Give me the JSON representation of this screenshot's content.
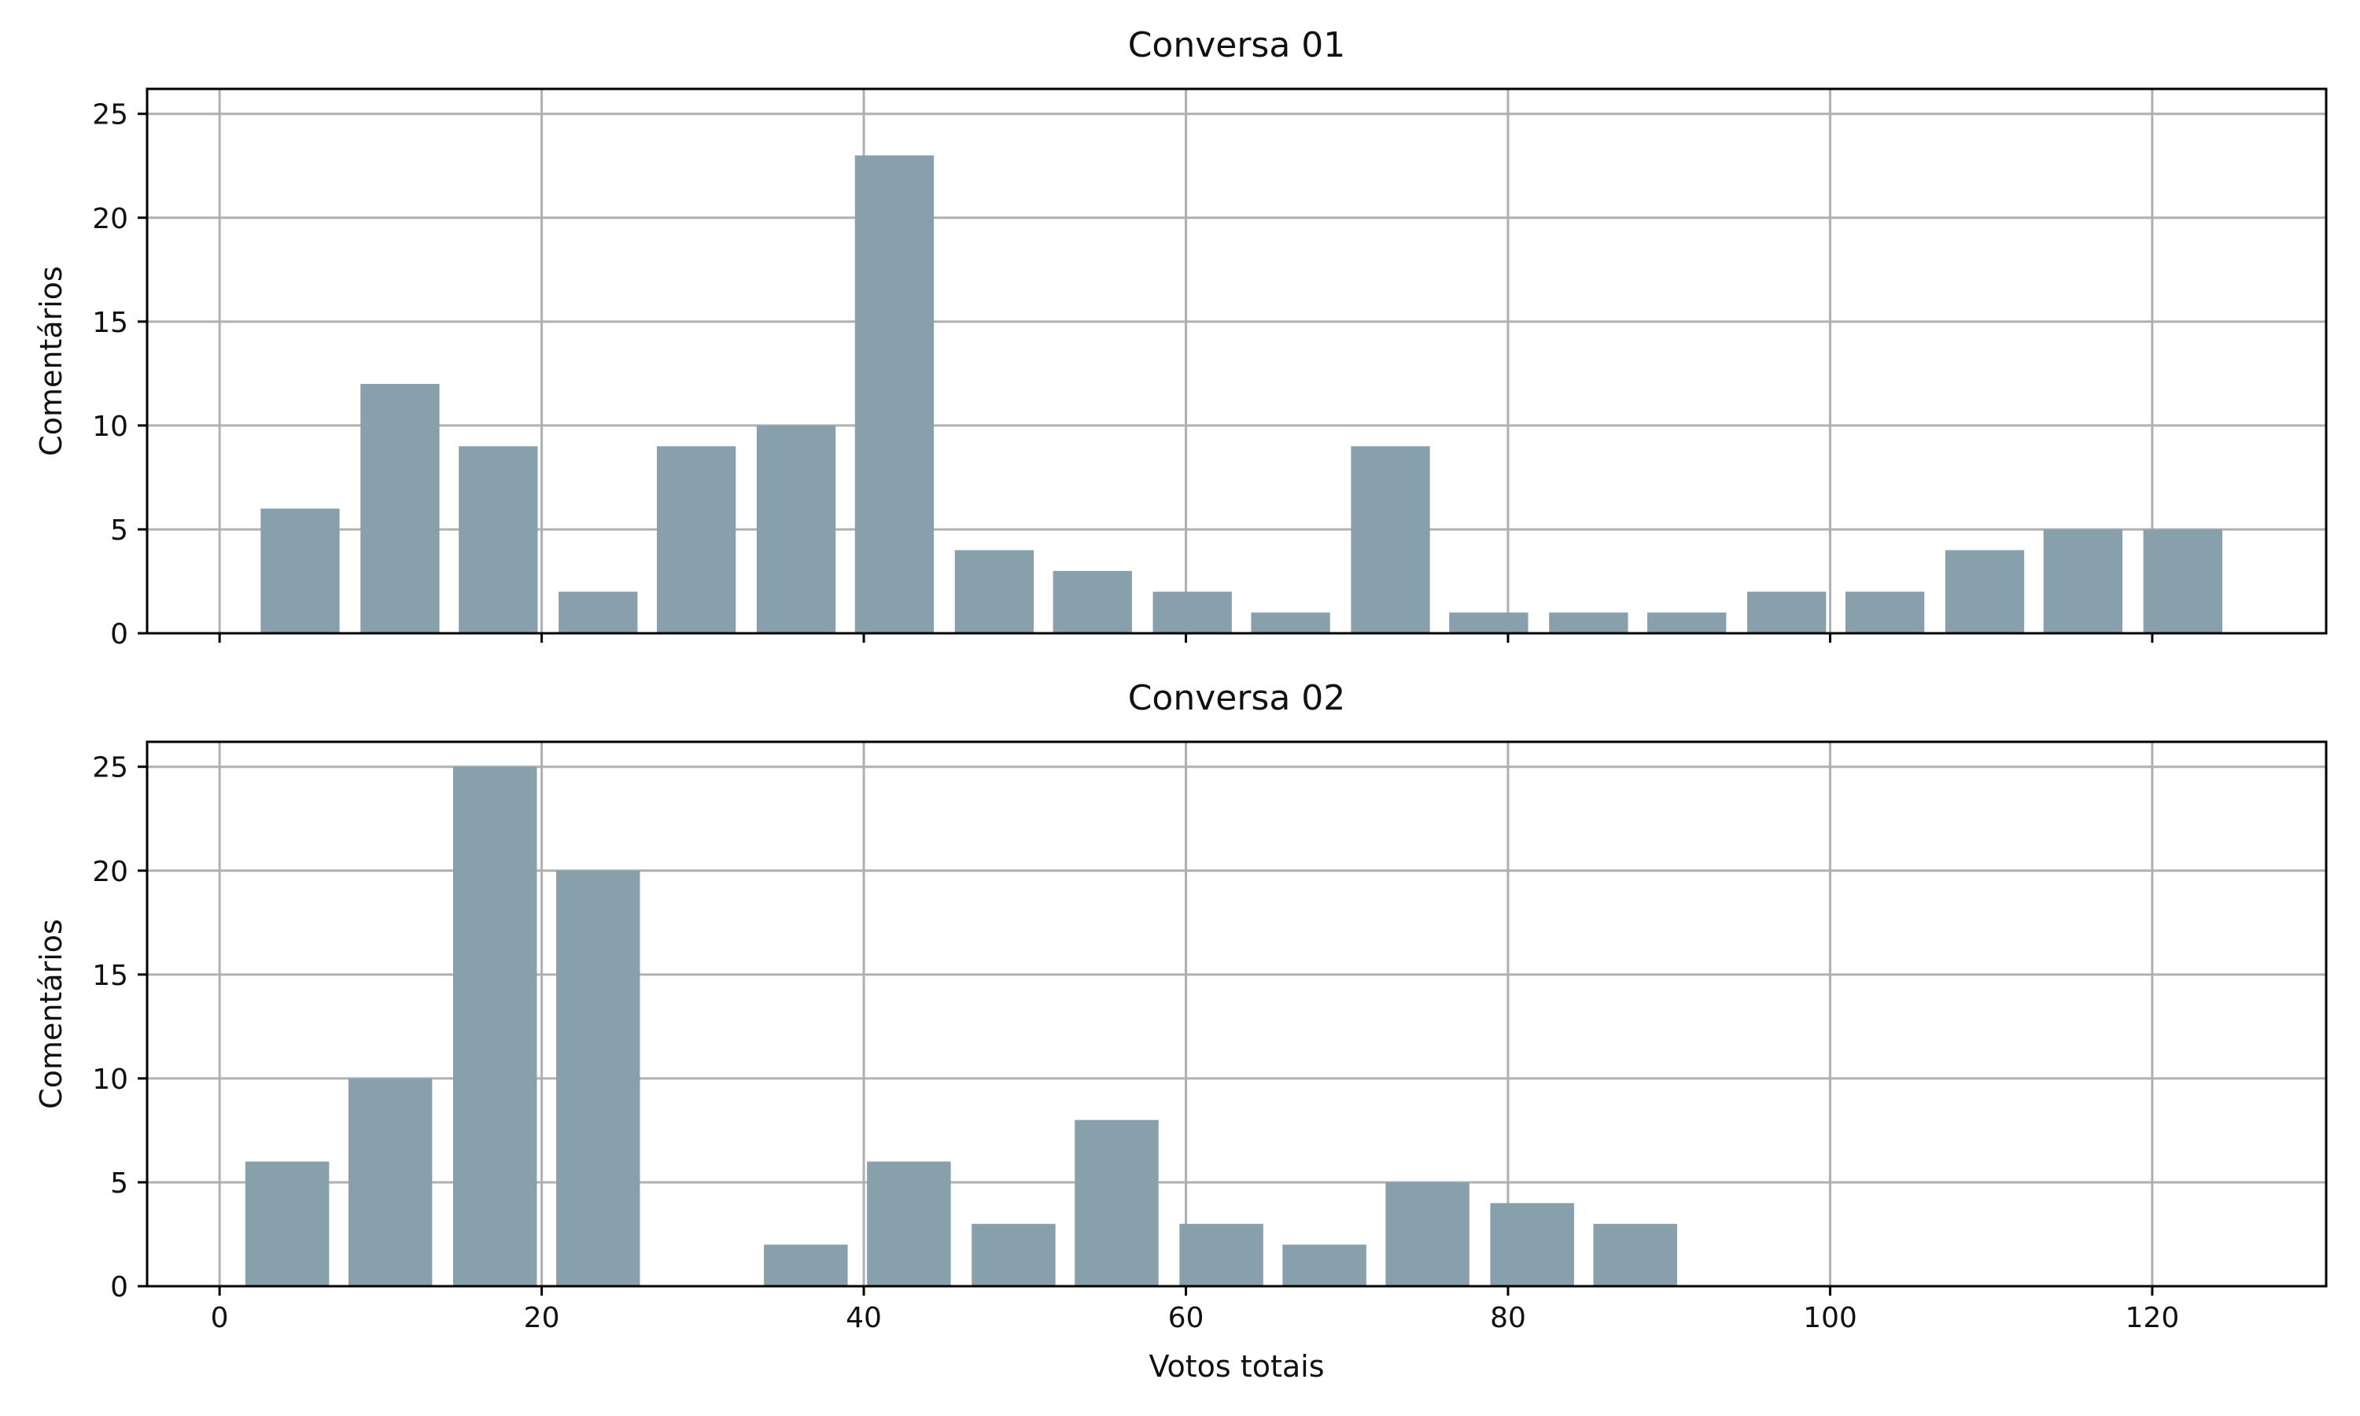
{
  "chart_data": [
    {
      "type": "bar",
      "title": "Conversa 01",
      "xlabel": "",
      "ylabel": "Comentários",
      "xlim": [
        -4.5,
        130.8
      ],
      "ylim": [
        0,
        26.2
      ],
      "xticks": [
        0,
        20,
        40,
        60,
        80,
        100,
        120
      ],
      "show_xtick_labels": false,
      "yticks": [
        0,
        5,
        10,
        15,
        20,
        25
      ],
      "grid": true,
      "bar_color": "#889fac",
      "bar_width": 4.9,
      "x": [
        5,
        11.2,
        17.3,
        23.5,
        29.6,
        35.8,
        41.9,
        48.1,
        54.2,
        60.4,
        66.5,
        72.7,
        78.8,
        85.0,
        91.1,
        97.3,
        103.4,
        109.6,
        115.7,
        121.9
      ],
      "values": [
        6,
        12,
        9,
        2,
        9,
        10,
        23,
        4,
        3,
        2,
        1,
        9,
        1,
        1,
        1,
        2,
        2,
        4,
        5,
        5
      ]
    },
    {
      "type": "bar",
      "title": "Conversa 02",
      "xlabel": "Votos totais",
      "ylabel": "Comentários",
      "xlim": [
        -4.5,
        130.8
      ],
      "ylim": [
        0,
        26.2
      ],
      "xticks": [
        0,
        20,
        40,
        60,
        80,
        100,
        120
      ],
      "show_xtick_labels": true,
      "yticks": [
        0,
        5,
        10,
        15,
        20,
        25
      ],
      "grid": true,
      "bar_color": "#889fac",
      "bar_width": 5.2,
      "x": [
        4.2,
        10.6,
        17.1,
        23.5,
        36.4,
        42.8,
        49.3,
        55.7,
        62.2,
        68.6,
        75.0,
        81.5,
        87.9
      ],
      "values": [
        6,
        10,
        25,
        20,
        2,
        6,
        3,
        8,
        3,
        2,
        5,
        4,
        3
      ]
    }
  ]
}
